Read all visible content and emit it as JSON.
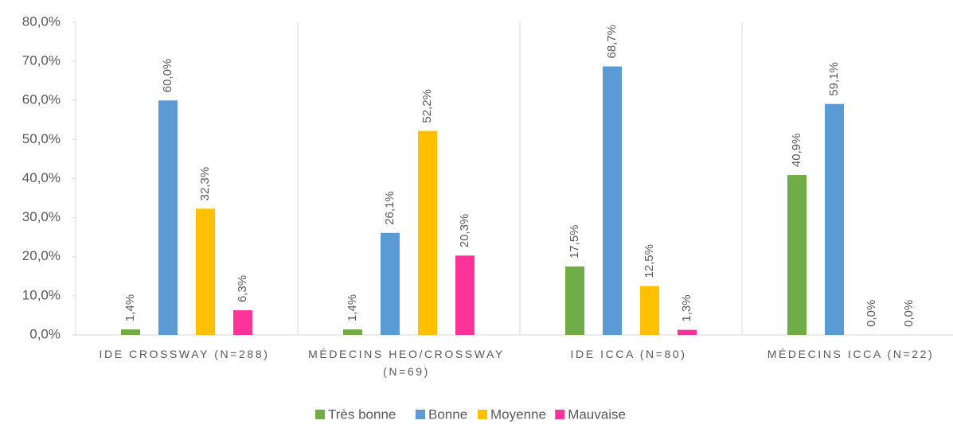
{
  "chart_data": {
    "type": "bar",
    "categories": [
      "IDE CROSSWAY (N=288)",
      "MÉDECINS HEO/CROSSWAY (N=69)",
      "IDE ICCA (N=80)",
      "MÉDECINS ICCA (N=22)"
    ],
    "series": [
      {
        "name": "Très bonne",
        "color": "#70ad47",
        "values": [
          1.4,
          1.4,
          17.5,
          40.9
        ],
        "value_labels": [
          "1,4%",
          "1,4%",
          "17,5%",
          "40,9%"
        ]
      },
      {
        "name": "Bonne",
        "color": "#5b9bd5",
        "values": [
          60.0,
          26.1,
          68.7,
          59.1
        ],
        "value_labels": [
          "60,0%",
          "26,1%",
          "68,7%",
          "59,1%"
        ]
      },
      {
        "name": "Moyenne",
        "color": "#ffc000",
        "values": [
          32.3,
          52.2,
          12.5,
          0.0
        ],
        "value_labels": [
          "32,3%",
          "52,2%",
          "12,5%",
          "0,0%"
        ]
      },
      {
        "name": "Mauvaise",
        "color": "#ff3399",
        "values": [
          6.3,
          20.3,
          1.3,
          0.0
        ],
        "value_labels": [
          "6,3%",
          "20,3%",
          "1,3%",
          "0,0%"
        ]
      }
    ],
    "ylim": [
      0,
      80
    ],
    "yticks": [
      {
        "value": 0,
        "label": "0,0%"
      },
      {
        "value": 10,
        "label": "10,0%"
      },
      {
        "value": 20,
        "label": "20,0%"
      },
      {
        "value": 30,
        "label": "30,0%"
      },
      {
        "value": 40,
        "label": "40,0%"
      },
      {
        "value": 50,
        "label": "50,0%"
      },
      {
        "value": 60,
        "label": "60,0%"
      },
      {
        "value": 70,
        "label": "70,0%"
      },
      {
        "value": 80,
        "label": "80,0%"
      }
    ],
    "legend": "bottom"
  }
}
